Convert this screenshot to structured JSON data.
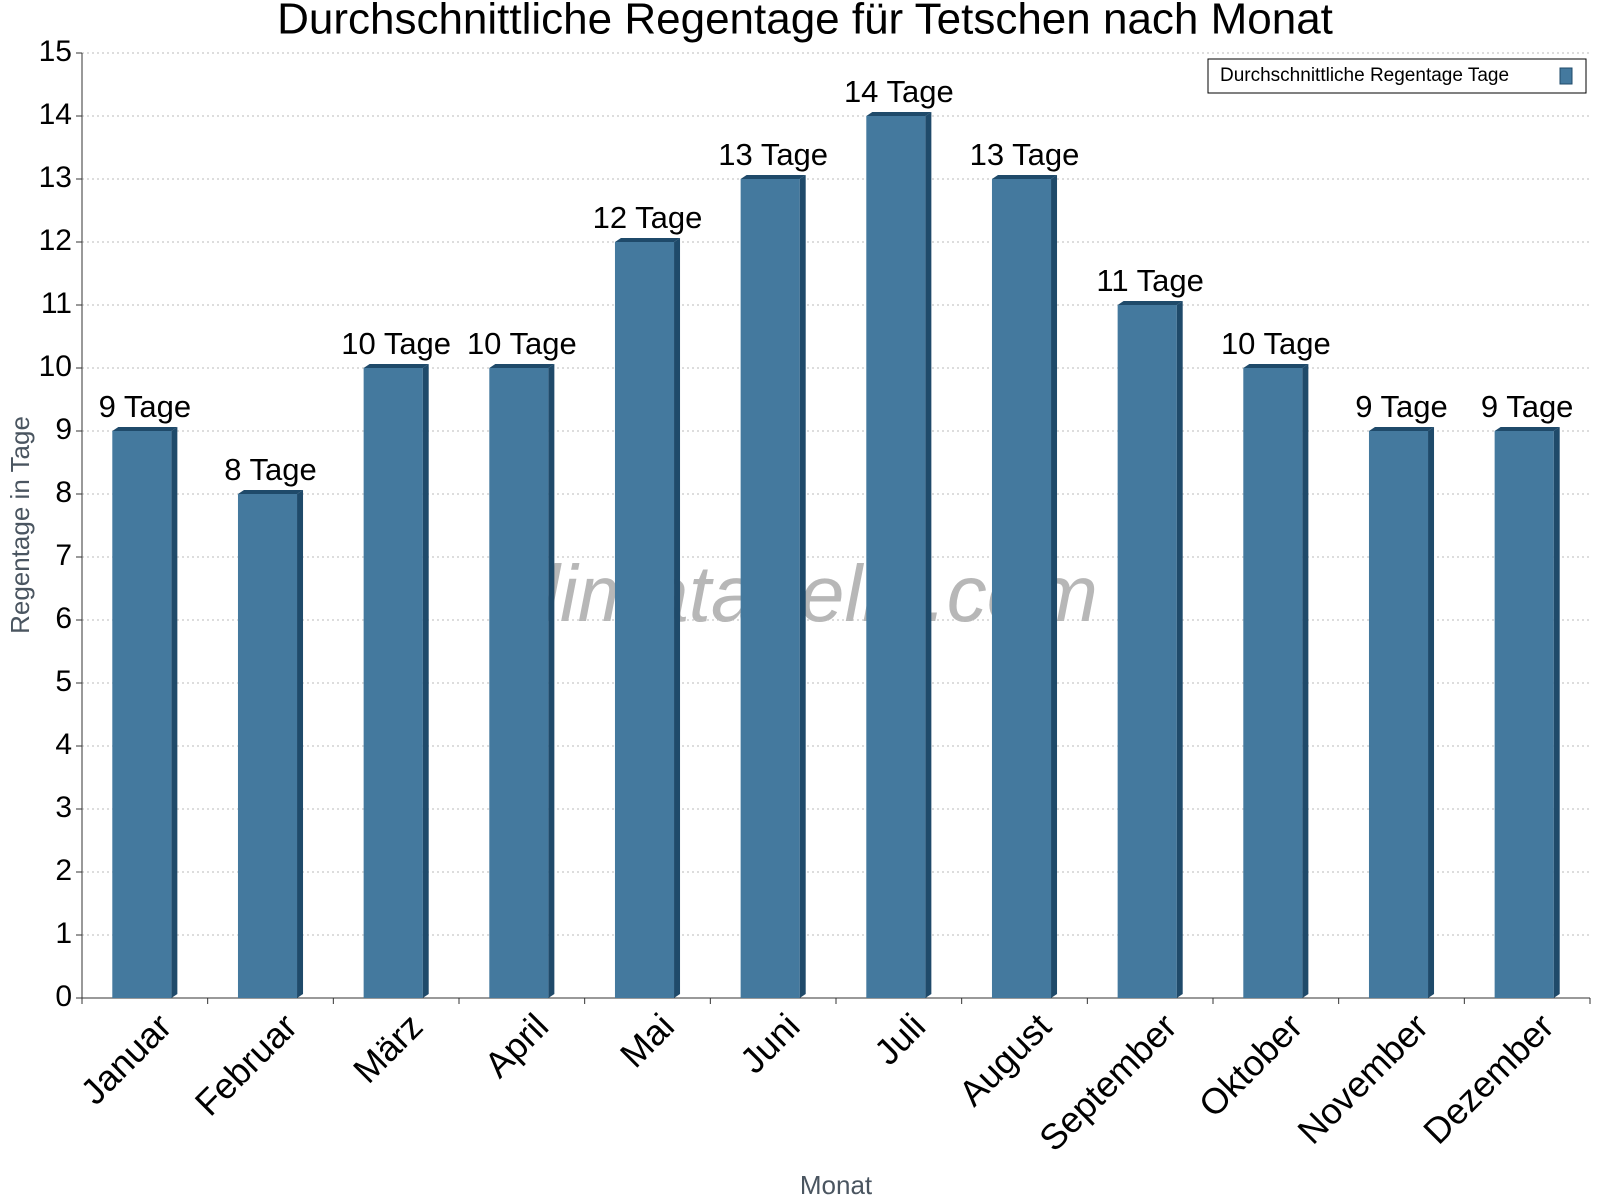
{
  "chart_data": {
    "type": "bar",
    "title": "Durchschnittliche Regentage für Tetschen nach Monat",
    "x_label": "Monat",
    "y_label": "Regentage in Tage",
    "watermark": "klimatabelle.com",
    "categories": [
      "Januar",
      "Februar",
      "März",
      "April",
      "Mai",
      "Juni",
      "Juli",
      "August",
      "September",
      "Oktober",
      "November",
      "Dezember"
    ],
    "series": [
      {
        "name": "Durchschnittliche Regentage Tage",
        "color": "#44799e",
        "values": [
          9,
          8,
          10,
          10,
          12,
          13,
          14,
          13,
          11,
          10,
          9,
          9
        ],
        "value_labels": [
          "9 Tage",
          "8 Tage",
          "10 Tage",
          "10 Tage",
          "12 Tage",
          "13 Tage",
          "14 Tage",
          "13 Tage",
          "11 Tage",
          "10 Tage",
          "9 Tage",
          "9 Tage"
        ]
      }
    ],
    "ylim": [
      0,
      15
    ],
    "yticks": [
      0,
      1,
      2,
      3,
      4,
      5,
      6,
      7,
      8,
      9,
      10,
      11,
      12,
      13,
      14,
      15
    ],
    "grid": true,
    "legend": "top-right"
  }
}
